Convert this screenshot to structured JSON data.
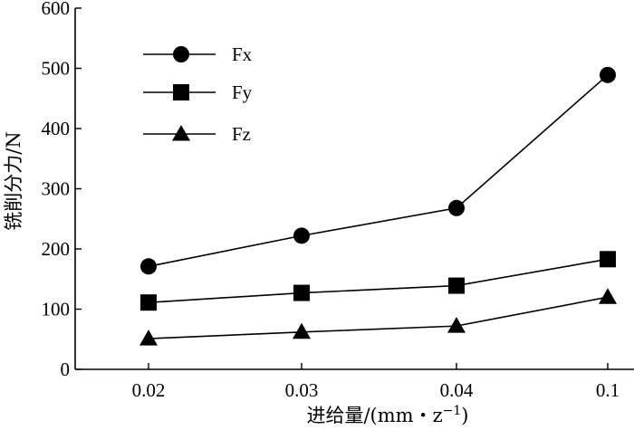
{
  "chart_data": {
    "type": "line",
    "categories": [
      "0.02",
      "0.03",
      "0.04",
      "0.1"
    ],
    "series": [
      {
        "name": "Fx",
        "marker": "circle",
        "values": [
          171,
          222,
          268,
          489
        ]
      },
      {
        "name": "Fy",
        "marker": "square",
        "values": [
          111,
          127,
          139,
          183
        ]
      },
      {
        "name": "Fz",
        "marker": "triangle",
        "values": [
          51,
          62,
          72,
          120
        ]
      }
    ],
    "ylabel": "铣削分力/N",
    "xlabel": "进给量/(mm・z",
    "xlabel_sup": "−1",
    "xlabel_end": ")",
    "ylim": [
      0,
      600
    ],
    "yticks": [
      0,
      100,
      200,
      300,
      400,
      500,
      600
    ],
    "grid": false,
    "legend_position": "top-left",
    "color": "#000000"
  }
}
